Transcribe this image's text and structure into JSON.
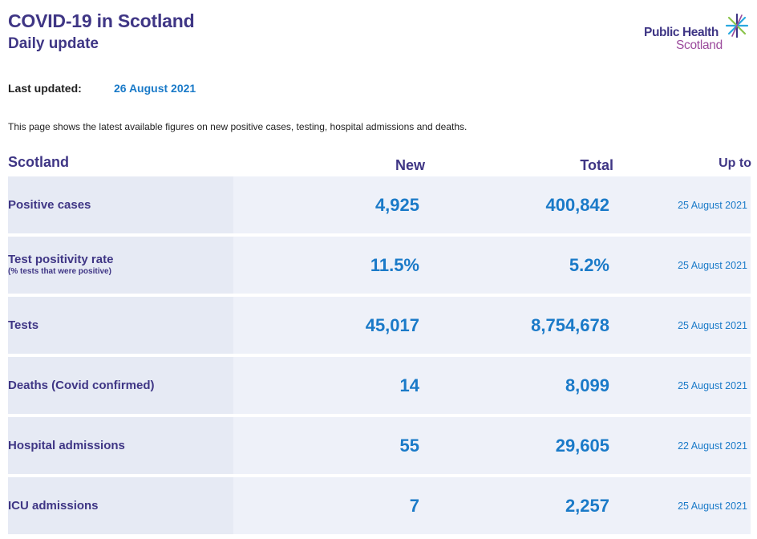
{
  "header": {
    "title": "COVID-19 in Scotland",
    "subtitle": "Daily update"
  },
  "logo": {
    "line1": "Public Health",
    "line2": "Scotland",
    "star_colors": [
      "#3f3685",
      "#29a9e0",
      "#8bc34a",
      "#9b4a9c"
    ]
  },
  "updated": {
    "label": "Last updated:",
    "value": "26 August 2021"
  },
  "intro": "This page shows the latest available figures on new positive cases, testing, hospital admissions and deaths.",
  "table": {
    "headers": {
      "region": "Scotland",
      "new": "New",
      "total": "Total",
      "up_to": "Up to"
    },
    "rows": [
      {
        "label": "Positive cases",
        "sublabel": "",
        "new": "4,925",
        "total": "400,842",
        "up_to": "25 August 2021"
      },
      {
        "label": "Test positivity rate",
        "sublabel": "(% tests that were positive)",
        "new": "11.5%",
        "total": "5.2%",
        "up_to": "25 August 2021"
      },
      {
        "label": "Tests",
        "sublabel": "",
        "new": "45,017",
        "total": "8,754,678",
        "up_to": "25 August 2021"
      },
      {
        "label": "Deaths (Covid confirmed)",
        "sublabel": "",
        "new": "14",
        "total": "8,099",
        "up_to": "25 August 2021"
      },
      {
        "label": "Hospital admissions",
        "sublabel": "",
        "new": "55",
        "total": "29,605",
        "up_to": "22 August 2021"
      },
      {
        "label": "ICU admissions",
        "sublabel": "",
        "new": "7",
        "total": "2,257",
        "up_to": "25 August 2021"
      }
    ]
  },
  "colors": {
    "heading": "#3f3685",
    "value": "#1a7ac8",
    "row_bg": "#eef1f9",
    "label_bg": "#e6eaf4"
  }
}
